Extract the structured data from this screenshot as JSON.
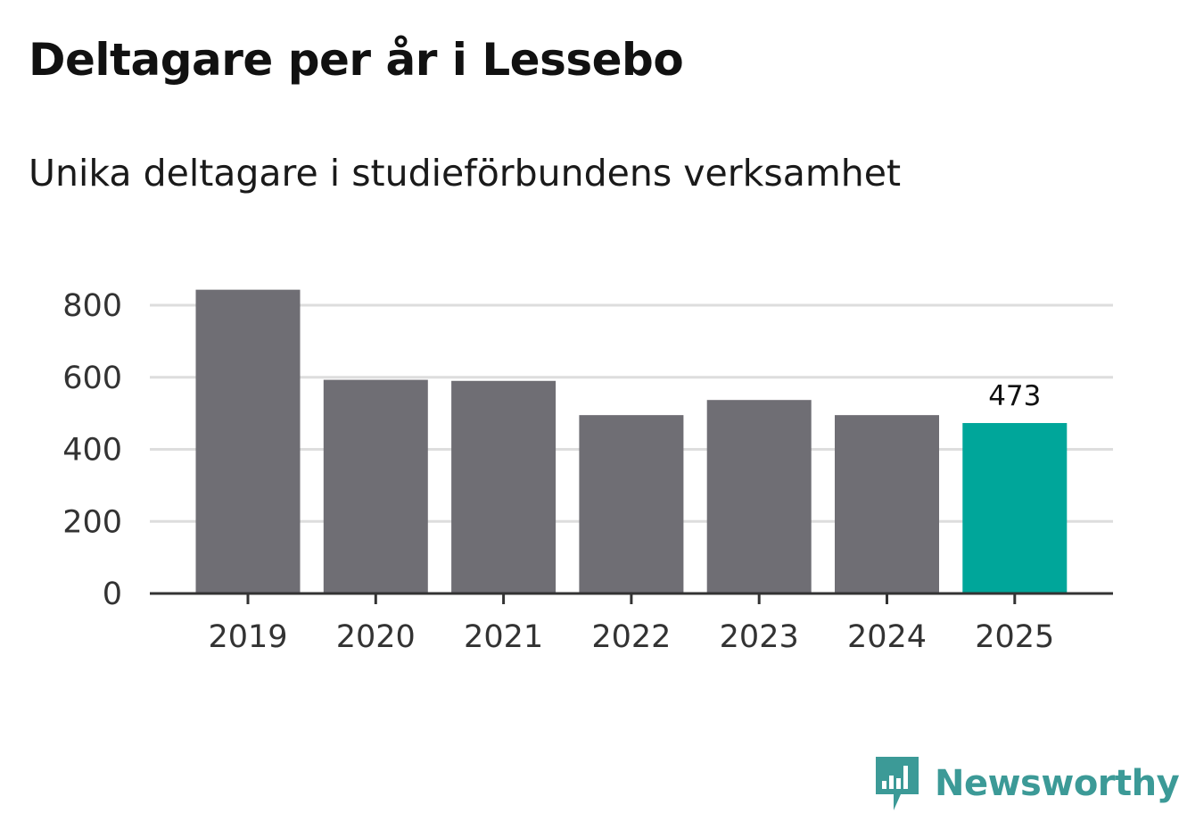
{
  "header": {
    "title": "Deltagare per år i Lessebo",
    "subtitle": "Unika deltagare i studieförbundens verksamhet"
  },
  "brand": {
    "name": "Newsworthy",
    "icon": "newsworthy-logo-icon",
    "color": "#3c9a97"
  },
  "colors": {
    "bar": "#6f6e74",
    "highlight": "#00a69a",
    "grid": "#dddddd",
    "axis": "#333333"
  },
  "chart_data": {
    "type": "bar",
    "title": "Deltagare per år i Lessebo",
    "subtitle": "Unika deltagare i studieförbundens verksamhet",
    "xlabel": "",
    "ylabel": "",
    "categories": [
      "2019",
      "2020",
      "2021",
      "2022",
      "2023",
      "2024",
      "2025"
    ],
    "values": [
      843,
      593,
      590,
      495,
      537,
      495,
      473
    ],
    "ylim": [
      0,
      860
    ],
    "yticks": [
      0,
      200,
      400,
      600,
      800
    ],
    "grid": true,
    "highlight_index": 6,
    "data_labels": [
      {
        "index": 6,
        "text": "473"
      }
    ]
  }
}
